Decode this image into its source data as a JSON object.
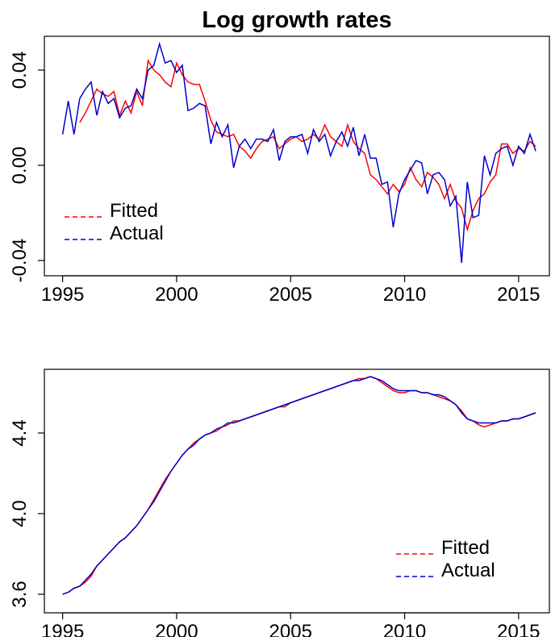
{
  "chart_data": [
    {
      "type": "line",
      "title": "Log growth rates",
      "x": [
        1995,
        1995.25,
        1995.5,
        1995.75,
        1996,
        1996.25,
        1996.5,
        1996.75,
        1997,
        1997.25,
        1997.5,
        1997.75,
        1998,
        1998.25,
        1998.5,
        1998.75,
        1999,
        1999.25,
        1999.5,
        1999.75,
        2000,
        2000.25,
        2000.5,
        2000.75,
        2001,
        2001.25,
        2001.5,
        2001.75,
        2002,
        2002.25,
        2002.5,
        2002.75,
        2003,
        2003.25,
        2003.5,
        2003.75,
        2004,
        2004.25,
        2004.5,
        2004.75,
        2005,
        2005.25,
        2005.5,
        2005.75,
        2006,
        2006.25,
        2006.5,
        2006.75,
        2007,
        2007.25,
        2007.5,
        2007.75,
        2008,
        2008.25,
        2008.5,
        2008.75,
        2009,
        2009.25,
        2009.5,
        2009.75,
        2010,
        2010.25,
        2010.5,
        2010.75,
        2011,
        2011.25,
        2011.5,
        2011.75,
        2012,
        2012.25,
        2012.5,
        2012.75,
        2013,
        2013.25,
        2013.5,
        2013.75,
        2014,
        2014.25,
        2014.5,
        2014.75,
        2015,
        2015.25,
        2015.5,
        2015.75
      ],
      "series": [
        {
          "name": "Fitted",
          "color": "#ff0000",
          "values": [
            null,
            null,
            null,
            0.018,
            0.022,
            0.027,
            0.032,
            0.03,
            0.029,
            0.031,
            0.021,
            0.027,
            0.022,
            0.031,
            0.025,
            0.044,
            0.04,
            0.038,
            0.035,
            0.033,
            0.043,
            0.038,
            0.035,
            0.034,
            0.034,
            0.027,
            0.019,
            0.014,
            0.013,
            0.012,
            0.013,
            0.008,
            0.006,
            0.003,
            0.007,
            0.01,
            0.011,
            0.012,
            0.007,
            0.009,
            0.011,
            0.012,
            0.01,
            0.011,
            0.013,
            0.011,
            0.017,
            0.012,
            0.01,
            0.008,
            0.017,
            0.01,
            0.007,
            0.005,
            -0.004,
            -0.006,
            -0.009,
            -0.012,
            -0.008,
            -0.011,
            -0.008,
            -0.001,
            -0.006,
            -0.009,
            -0.003,
            -0.005,
            -0.008,
            -0.014,
            -0.008,
            -0.015,
            -0.018,
            -0.027,
            -0.019,
            -0.014,
            -0.012,
            -0.007,
            -0.004,
            0.009,
            0.009,
            0.005,
            0.007,
            0.006,
            0.01,
            0.008
          ]
        },
        {
          "name": "Actual",
          "color": "#0000cd",
          "values": [
            0.013,
            0.027,
            0.013,
            0.028,
            0.032,
            0.035,
            0.021,
            0.031,
            0.026,
            0.028,
            0.02,
            0.024,
            0.025,
            0.032,
            0.028,
            0.04,
            0.042,
            0.051,
            0.043,
            0.044,
            0.039,
            0.042,
            0.023,
            0.024,
            0.026,
            0.025,
            0.009,
            0.018,
            0.012,
            0.017,
            -0.001,
            0.008,
            0.011,
            0.007,
            0.011,
            0.011,
            0.01,
            0.015,
            0.002,
            0.01,
            0.012,
            0.012,
            0.013,
            0.005,
            0.015,
            0.01,
            0.013,
            0.004,
            0.01,
            0.014,
            0.008,
            0.016,
            0.004,
            0.013,
            0.003,
            0.003,
            -0.008,
            -0.007,
            -0.026,
            -0.012,
            -0.006,
            -0.002,
            0.002,
            0.001,
            -0.012,
            -0.004,
            -0.003,
            -0.006,
            -0.017,
            -0.013,
            -0.041,
            -0.007,
            -0.022,
            -0.021,
            0.004,
            -0.004,
            0.005,
            0.007,
            0.008,
            0.0,
            0.008,
            0.005,
            0.013,
            0.006
          ]
        }
      ],
      "xlim": [
        1994.2,
        2016.35
      ],
      "xticks": [
        1995,
        2000,
        2005,
        2010,
        2015
      ],
      "ylim": [
        -0.0464,
        0.0542
      ],
      "yticks": [
        -0.04,
        {
          "value": 0,
          "label": "0.00"
        },
        0.04
      ],
      "legend": "bottomleft"
    },
    {
      "type": "line",
      "x": [
        1995,
        1995.25,
        1995.5,
        1995.75,
        1996,
        1996.25,
        1996.5,
        1996.75,
        1997,
        1997.25,
        1997.5,
        1997.75,
        1998,
        1998.25,
        1998.5,
        1998.75,
        1999,
        1999.25,
        1999.5,
        1999.75,
        2000,
        2000.25,
        2000.5,
        2000.75,
        2001,
        2001.25,
        2001.5,
        2001.75,
        2002,
        2002.25,
        2002.5,
        2002.75,
        2003,
        2003.25,
        2003.5,
        2003.75,
        2004,
        2004.25,
        2004.5,
        2004.75,
        2005,
        2005.25,
        2005.5,
        2005.75,
        2006,
        2006.25,
        2006.5,
        2006.75,
        2007,
        2007.25,
        2007.5,
        2007.75,
        2008,
        2008.25,
        2008.5,
        2008.75,
        2009,
        2009.25,
        2009.5,
        2009.75,
        2010,
        2010.25,
        2010.5,
        2010.75,
        2011,
        2011.25,
        2011.5,
        2011.75,
        2012,
        2012.25,
        2012.5,
        2012.75,
        2013,
        2013.25,
        2013.5,
        2013.75,
        2014,
        2014.25,
        2014.5,
        2014.75,
        2015,
        2015.25,
        2015.5,
        2015.75
      ],
      "series": [
        {
          "name": "Fitted",
          "color": "#ff0000",
          "values": [
            null,
            3.61,
            3.63,
            3.64,
            3.66,
            3.69,
            3.74,
            3.77,
            3.8,
            3.83,
            3.86,
            3.88,
            3.91,
            3.94,
            3.98,
            4.02,
            4.07,
            4.12,
            4.17,
            4.21,
            4.25,
            4.29,
            4.32,
            4.35,
            4.37,
            4.39,
            4.4,
            4.41,
            4.43,
            4.44,
            4.46,
            4.46,
            4.47,
            4.48,
            4.49,
            4.5,
            4.51,
            4.52,
            4.53,
            4.53,
            4.55,
            4.56,
            4.57,
            4.58,
            4.59,
            4.6,
            4.61,
            4.62,
            4.63,
            4.64,
            4.65,
            4.66,
            4.67,
            4.67,
            4.68,
            4.67,
            4.65,
            4.63,
            4.61,
            4.6,
            4.6,
            4.61,
            4.61,
            4.6,
            4.6,
            4.59,
            4.58,
            4.57,
            4.56,
            4.54,
            4.51,
            4.47,
            4.46,
            4.44,
            4.43,
            4.44,
            4.45,
            4.46,
            4.46,
            4.47,
            4.47,
            4.48,
            4.49,
            4.5
          ]
        },
        {
          "name": "Actual",
          "color": "#0000cd",
          "values": [
            3.6,
            3.61,
            3.63,
            3.64,
            3.67,
            3.7,
            3.74,
            3.77,
            3.8,
            3.83,
            3.86,
            3.88,
            3.91,
            3.94,
            3.98,
            4.02,
            4.06,
            4.11,
            4.16,
            4.21,
            4.25,
            4.29,
            4.32,
            4.34,
            4.37,
            4.39,
            4.4,
            4.42,
            4.43,
            4.45,
            4.45,
            4.46,
            4.47,
            4.48,
            4.49,
            4.5,
            4.51,
            4.52,
            4.53,
            4.54,
            4.55,
            4.56,
            4.57,
            4.58,
            4.59,
            4.6,
            4.61,
            4.62,
            4.63,
            4.64,
            4.65,
            4.66,
            4.66,
            4.67,
            4.68,
            4.67,
            4.66,
            4.64,
            4.62,
            4.61,
            4.61,
            4.61,
            4.61,
            4.6,
            4.6,
            4.59,
            4.59,
            4.58,
            4.56,
            4.54,
            4.5,
            4.47,
            4.46,
            4.45,
            4.45,
            4.45,
            4.45,
            4.46,
            4.46,
            4.47,
            4.47,
            4.48,
            4.49,
            4.5
          ]
        }
      ],
      "xlim": [
        1994.2,
        2016.35
      ],
      "xticks": [
        1995,
        2000,
        2005,
        2010,
        2015
      ],
      "ylim": [
        3.508,
        4.716
      ],
      "yticks": [
        3.6,
        {
          "value": 4,
          "label": "4.0"
        },
        4.4
      ],
      "legend": "bottomright"
    }
  ]
}
